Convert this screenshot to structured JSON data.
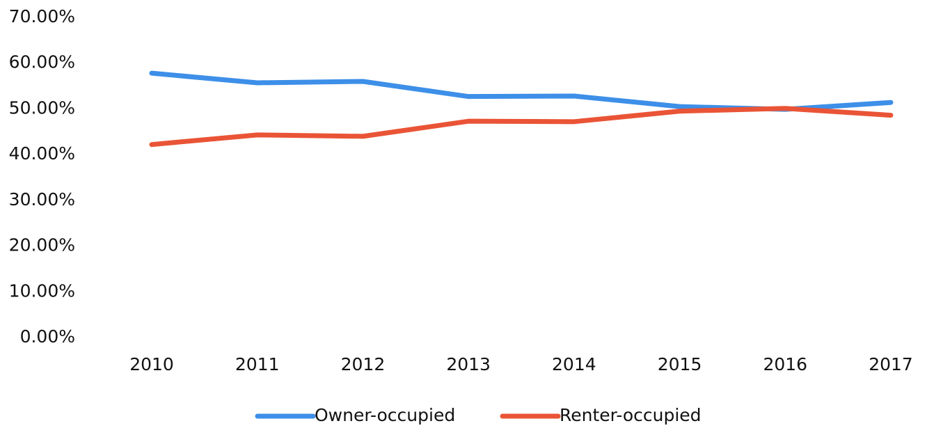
{
  "chart_data": {
    "type": "line",
    "categories": [
      "2010",
      "2011",
      "2012",
      "2013",
      "2014",
      "2015",
      "2016",
      "2017"
    ],
    "series": [
      {
        "name": "Owner-occupied",
        "color": "#3d8fe8",
        "values": [
          57.8,
          55.7,
          56.0,
          52.7,
          52.8,
          50.5,
          49.9,
          51.4
        ]
      },
      {
        "name": "Renter-occupied",
        "color": "#ea5436",
        "values": [
          42.2,
          44.3,
          44.0,
          47.3,
          47.2,
          49.5,
          50.1,
          48.6
        ]
      }
    ],
    "ylim": [
      0,
      70
    ],
    "yticks": [
      {
        "value": 0,
        "label": "0.00%"
      },
      {
        "value": 10,
        "label": "10.00%"
      },
      {
        "value": 20,
        "label": "20.00%"
      },
      {
        "value": 30,
        "label": "30.00%"
      },
      {
        "value": 40,
        "label": "40.00%"
      },
      {
        "value": 50,
        "label": "50.00%"
      },
      {
        "value": 60,
        "label": "60.00%"
      },
      {
        "value": 70,
        "label": "70.00%"
      }
    ],
    "grid": false,
    "legend": "bottom"
  }
}
